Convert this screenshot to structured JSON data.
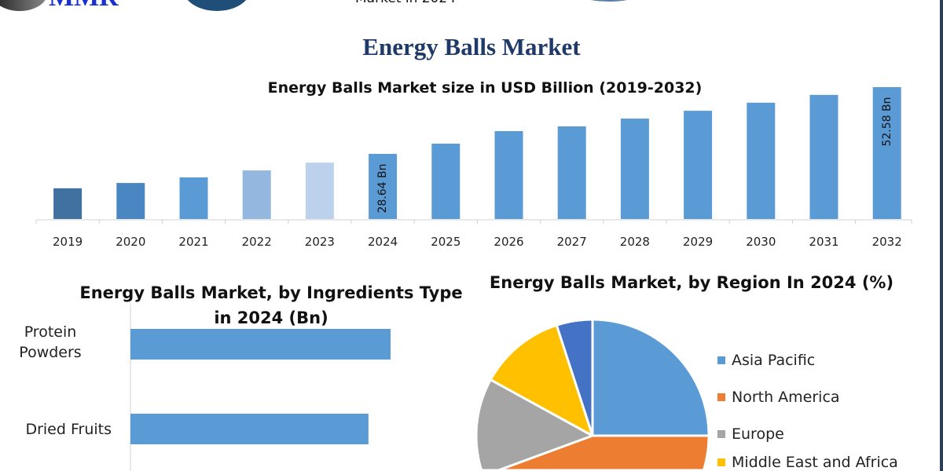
{
  "logo": {
    "text": "MMR"
  },
  "header": {
    "partial_text": "Market in 2024"
  },
  "title": "Energy Balls Market",
  "chart_data": [
    {
      "type": "bar",
      "title": "Energy Balls Market size in USD Billion (2019-2032)",
      "categories": [
        "2019",
        "2020",
        "2021",
        "2022",
        "2023",
        "2024",
        "2025",
        "2026",
        "2027",
        "2028",
        "2029",
        "2030",
        "2031",
        "2032"
      ],
      "values": [
        16.3,
        18.2,
        20.2,
        22.7,
        25.5,
        28.64,
        32.3,
        36.8,
        38.5,
        41.3,
        44.1,
        47.0,
        49.8,
        52.58
      ],
      "colors": [
        "#41729f",
        "#4a86c2",
        "#5b9bd5",
        "#93b7df",
        "#bcd2ec",
        "#5b9bd5",
        "#5b9bd5",
        "#5b9bd5",
        "#5b9bd5",
        "#5b9bd5",
        "#5b9bd5",
        "#5b9bd5",
        "#5b9bd5",
        "#5b9bd5"
      ],
      "data_labels": {
        "2024": "28.64 Bn",
        "2032": "52.58 Bn"
      },
      "ylim": [
        5.27,
        55
      ],
      "grid": false,
      "xlabel": "",
      "ylabel": ""
    },
    {
      "type": "bar",
      "orientation": "horizontal",
      "title": "Energy Balls Market, by Ingredients Type in 2024 (Bn)",
      "categories": [
        "Protein Powders",
        "Dried Fruits"
      ],
      "values": [
        1.0,
        0.915
      ],
      "color": "#5b9bd5"
    },
    {
      "type": "pie",
      "title": "Energy Balls Market, by Region In 2024 (%)",
      "labels": [
        "Asia Pacific",
        "North America",
        "Europe",
        "Middle East and Africa",
        "South America"
      ],
      "values": [
        25,
        40,
        18,
        12,
        5
      ],
      "colors": [
        "#5b9bd5",
        "#ed7d31",
        "#a5a5a5",
        "#ffc000",
        "#4472c4"
      ],
      "legend": "right"
    }
  ]
}
